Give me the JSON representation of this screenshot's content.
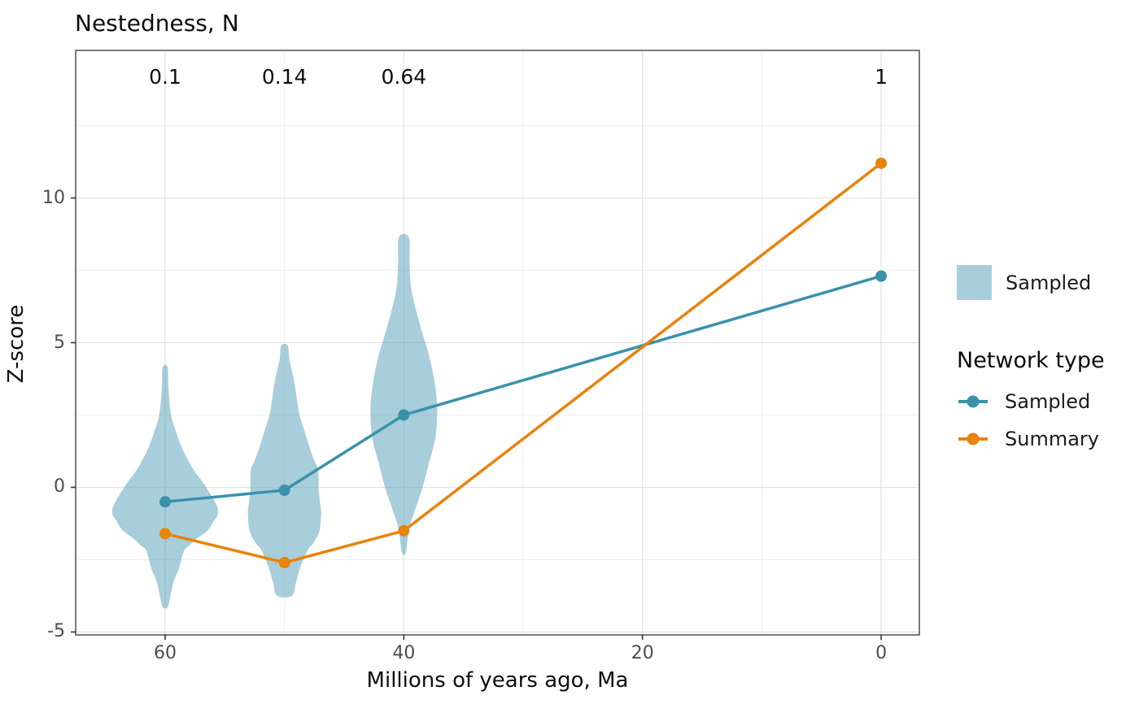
{
  "title": "Nestedness, N",
  "axes": {
    "x_title": "Millions of years ago, Ma",
    "y_title": "Z-score"
  },
  "legend": {
    "fill_item_label": "Sampled",
    "group_title": "Network type",
    "items": [
      {
        "label": "Sampled",
        "color": "#3992A9"
      },
      {
        "label": "Summary",
        "color": "#E8830C"
      }
    ]
  },
  "colors": {
    "sampled_line": "#3992A9",
    "summary_line": "#E8830C",
    "violin_fill_base": "#519DB7",
    "violin_fill_legend": "#A8CEDB",
    "grid_major": "#E3E3E3",
    "grid_minor": "#EFEFEF",
    "panel_border": "#595959",
    "tick_mark": "#333333",
    "tick_text": "#4D4D4D"
  },
  "chart_data": {
    "type": "violin+line",
    "title": "Nestedness, N",
    "xlabel": "Millions of years ago, Ma",
    "ylabel": "Z-score",
    "x_axis_reversed": true,
    "xlim": [
      67.5,
      -3.2
    ],
    "ylim": [
      -5.1,
      15.1
    ],
    "x_ticks_major": [
      60,
      40,
      20,
      0
    ],
    "x_ticks_minor": [
      50,
      30,
      10
    ],
    "y_ticks_major": [
      -5,
      0,
      5,
      10
    ],
    "y_ticks_minor": [
      -2.5,
      2.5,
      7.5,
      12.5
    ],
    "top_labels": [
      {
        "x": 60,
        "text": "0.1"
      },
      {
        "x": 50,
        "text": "0.14"
      },
      {
        "x": 40,
        "text": "0.64"
      },
      {
        "x": 0,
        "text": "1"
      }
    ],
    "series": [
      {
        "name": "Sampled",
        "color": "#3992A9",
        "x": [
          60,
          50,
          40,
          0
        ],
        "y": [
          -0.5,
          -0.1,
          2.5,
          7.3
        ]
      },
      {
        "name": "Summary",
        "color": "#E8830C",
        "x": [
          60,
          50,
          40,
          0
        ],
        "y": [
          -1.6,
          -2.6,
          -1.5,
          11.2
        ]
      }
    ],
    "violins": {
      "name": "Sampled",
      "fill": "#519DB7",
      "opacity": 0.5,
      "groups": [
        {
          "x": 60,
          "profile_z_hwpx": [
            [
              4.15,
              3
            ],
            [
              3.5,
              4
            ],
            [
              2.9,
              5.5
            ],
            [
              2.4,
              8
            ],
            [
              1.95,
              13
            ],
            [
              1.4,
              20
            ],
            [
              1.0,
              27
            ],
            [
              0.6,
              35
            ],
            [
              0.1,
              48
            ],
            [
              -0.55,
              62
            ],
            [
              -0.9,
              65
            ],
            [
              -1.2,
              59
            ],
            [
              -1.5,
              52
            ],
            [
              -1.75,
              40
            ],
            [
              -2.0,
              30
            ],
            [
              -2.2,
              23
            ],
            [
              -2.8,
              17
            ],
            [
              -3.3,
              10
            ],
            [
              -3.9,
              5.5
            ],
            [
              -4.15,
              3
            ]
          ]
        },
        {
          "x": 50,
          "profile_z_hwpx": [
            [
              4.9,
              4
            ],
            [
              4.4,
              6
            ],
            [
              3.8,
              11
            ],
            [
              3.1,
              15
            ],
            [
              2.55,
              18
            ],
            [
              2.0,
              24
            ],
            [
              1.45,
              30
            ],
            [
              0.9,
              37
            ],
            [
              0.65,
              41
            ],
            [
              0.2,
              42
            ],
            [
              -0.1,
              42
            ],
            [
              -0.6,
              44
            ],
            [
              -0.9,
              45
            ],
            [
              -1.5,
              43
            ],
            [
              -1.9,
              36
            ],
            [
              -2.2,
              28
            ],
            [
              -2.8,
              19
            ],
            [
              -3.3,
              14
            ],
            [
              -3.75,
              9
            ]
          ]
        },
        {
          "x": 40,
          "profile_z_hwpx": [
            [
              8.65,
              6
            ],
            [
              7.8,
              7
            ],
            [
              7.0,
              8.5
            ],
            [
              6.4,
              12.5
            ],
            [
              5.5,
              21
            ],
            [
              4.55,
              31
            ],
            [
              3.6,
              38
            ],
            [
              2.7,
              41
            ],
            [
              1.75,
              39
            ],
            [
              0.85,
              31
            ],
            [
              -0.1,
              22
            ],
            [
              -1.0,
              11
            ],
            [
              -1.5,
              6
            ],
            [
              -2.25,
              2.5
            ]
          ]
        }
      ]
    }
  }
}
